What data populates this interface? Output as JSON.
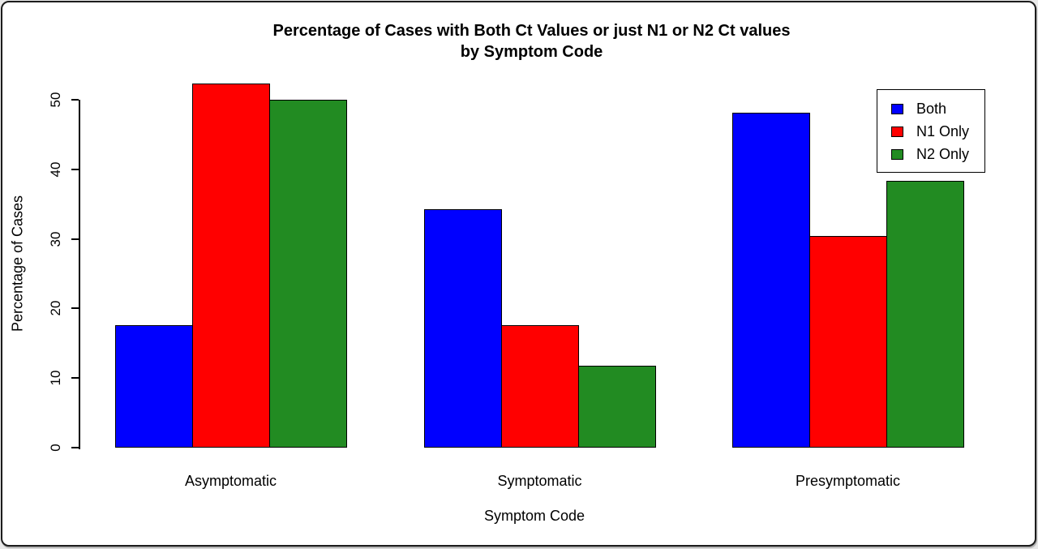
{
  "chart": {
    "title_line1": "Percentage of Cases with Both Ct Values or just N1 or N2 Ct values",
    "title_line2": "by Symptom Code",
    "xlabel": "Symptom Code",
    "ylabel": "Percentage of Cases"
  },
  "chart_data": {
    "type": "bar",
    "title": "Percentage of Cases with Both Ct Values or just N1 or N2 Ct values by Symptom Code",
    "xlabel": "Symptom Code",
    "ylabel": "Percentage of Cases",
    "categories": [
      "Asymptomatic",
      "Symptomatic",
      "Presymptomatic"
    ],
    "series": [
      {
        "name": "Both",
        "color": "#0000FF",
        "values": [
          17.6,
          34.3,
          48.1
        ]
      },
      {
        "name": "N1 Only",
        "color": "#FF0000",
        "values": [
          52.3,
          17.6,
          30.4
        ]
      },
      {
        "name": "N2 Only",
        "color": "#228B22",
        "values": [
          50.0,
          11.8,
          38.3
        ]
      }
    ],
    "ylim": [
      0,
      50
    ],
    "yticks": [
      0,
      10,
      20,
      30,
      40,
      50
    ],
    "grid": false,
    "legend_position": "top-right",
    "bar_edge_color": "#000000",
    "background_color": "#FFFFFF"
  }
}
